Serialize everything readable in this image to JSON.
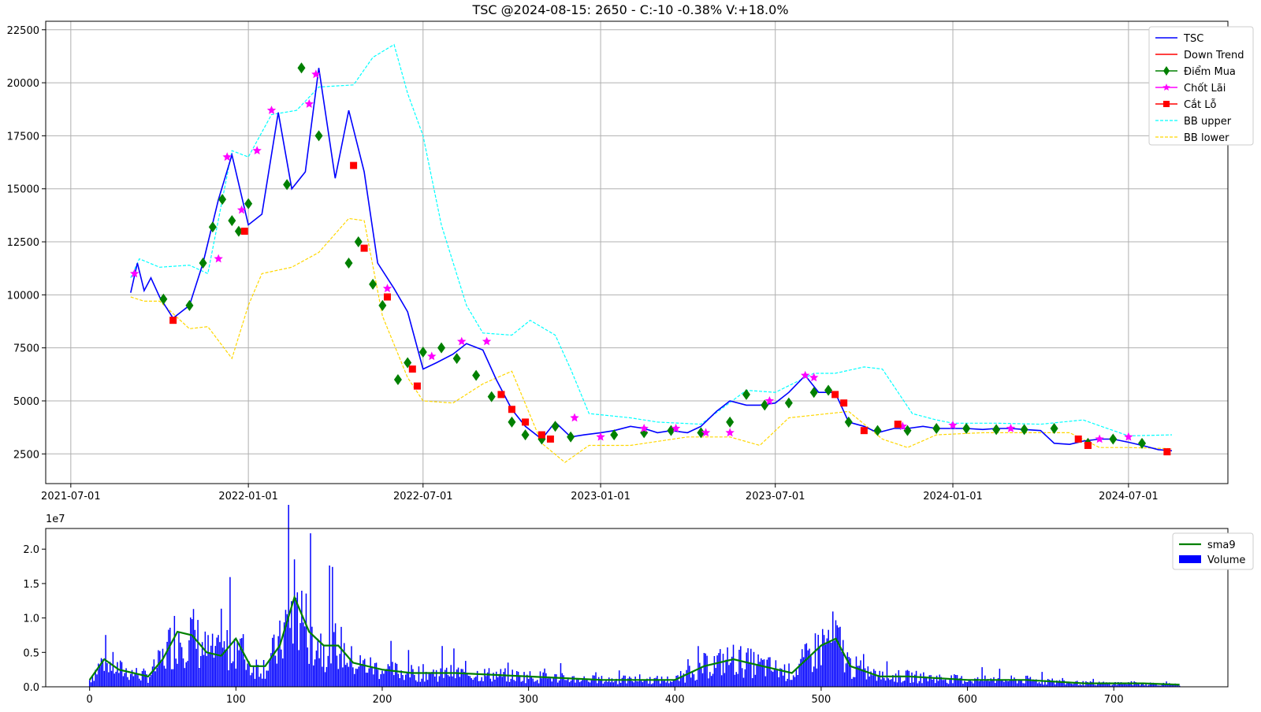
{
  "chart_data": [
    {
      "type": "line",
      "title": "TSC @2024-08-15: 2650 - C:-10 -0.38% V:+18.0%",
      "x_ticks": [
        "2021-07-01",
        "2022-01-01",
        "2022-07-01",
        "2023-01-01",
        "2023-07-01",
        "2024-01-01",
        "2024-07-01"
      ],
      "y_ticks": [
        2500,
        5000,
        7500,
        10000,
        12500,
        15000,
        17500,
        20000,
        22500
      ],
      "ylim": [
        1100,
        22900
      ],
      "grid": true,
      "legend_position": "top-right",
      "legend": [
        "TSC",
        "Down Trend",
        "Điểm Mua",
        "Chốt Lãi",
        "Cắt Lỗ",
        "BB upper",
        "BB lower"
      ],
      "colors": {
        "TSC": "#0000ff",
        "Down Trend": "#ff0000",
        "Điểm Mua": "#008000",
        "Chốt Lãi": "#ff00ff",
        "Cắt Lỗ": "#ff0000",
        "BB upper": "#00ffff",
        "BB lower": "#ffd700"
      },
      "series": [
        {
          "name": "TSC",
          "x": [
            "2021-09-01",
            "2021-09-08",
            "2021-09-15",
            "2021-09-22",
            "2021-10-01",
            "2021-10-15",
            "2021-11-01",
            "2021-11-15",
            "2021-12-01",
            "2021-12-15",
            "2022-01-01",
            "2022-01-15",
            "2022-02-01",
            "2022-02-15",
            "2022-03-01",
            "2022-03-15",
            "2022-04-01",
            "2022-04-15",
            "2022-05-01",
            "2022-05-15",
            "2022-06-01",
            "2022-06-15",
            "2022-07-01",
            "2022-07-15",
            "2022-08-01",
            "2022-08-15",
            "2022-09-01",
            "2022-09-15",
            "2022-10-01",
            "2022-10-15",
            "2022-11-01",
            "2022-11-15",
            "2022-12-01",
            "2022-12-15",
            "2023-01-01",
            "2023-01-15",
            "2023-02-01",
            "2023-02-15",
            "2023-03-01",
            "2023-03-15",
            "2023-04-01",
            "2023-04-15",
            "2023-05-01",
            "2023-05-15",
            "2023-06-01",
            "2023-06-15",
            "2023-07-01",
            "2023-07-15",
            "2023-08-01",
            "2023-08-15",
            "2023-09-01",
            "2023-09-15",
            "2023-10-01",
            "2023-10-15",
            "2023-11-01",
            "2023-11-15",
            "2023-12-01",
            "2023-12-15",
            "2024-01-01",
            "2024-01-15",
            "2024-02-01",
            "2024-02-15",
            "2024-03-01",
            "2024-03-15",
            "2024-04-01",
            "2024-04-15",
            "2024-05-01",
            "2024-05-15",
            "2024-06-01",
            "2024-06-15",
            "2024-07-01",
            "2024-07-15",
            "2024-08-01",
            "2024-08-15"
          ],
          "values": [
            10100,
            11500,
            10200,
            10800,
            9900,
            8900,
            9500,
            11500,
            14500,
            16600,
            13300,
            13800,
            18600,
            15000,
            15800,
            20700,
            15500,
            18700,
            15800,
            11500,
            10300,
            9200,
            6500,
            6800,
            7200,
            7700,
            7400,
            6000,
            4600,
            3800,
            3200,
            4000,
            3300,
            3400,
            3500,
            3600,
            3800,
            3700,
            3500,
            3600,
            3500,
            3800,
            4500,
            5000,
            4800,
            4800,
            4900,
            5400,
            6200,
            5400,
            5400,
            4000,
            3800,
            3500,
            3700,
            3700,
            3800,
            3700,
            3700,
            3700,
            3650,
            3700,
            3700,
            3650,
            3600,
            3000,
            2950,
            3100,
            3200,
            3200,
            3050,
            2900,
            2700,
            2650
          ]
        },
        {
          "name": "BB upper",
          "x": [
            "2021-09-01",
            "2021-09-10",
            "2021-10-01",
            "2021-11-01",
            "2021-11-20",
            "2021-12-15",
            "2022-01-01",
            "2022-01-25",
            "2022-02-20",
            "2022-03-15",
            "2022-04-20",
            "2022-05-10",
            "2022-06-01",
            "2022-06-15",
            "2022-07-01",
            "2022-07-20",
            "2022-08-15",
            "2022-09-01",
            "2022-10-01",
            "2022-10-20",
            "2022-11-15",
            "2022-12-01",
            "2022-12-20",
            "2023-02-01",
            "2023-03-01",
            "2023-04-15",
            "2023-06-01",
            "2023-07-01",
            "2023-08-10",
            "2023-09-01",
            "2023-10-01",
            "2023-10-20",
            "2023-11-20",
            "2023-12-15",
            "2024-01-01",
            "2024-02-15",
            "2024-04-01",
            "2024-05-15",
            "2024-07-01",
            "2024-08-15"
          ],
          "values": [
            10800,
            11700,
            11300,
            11400,
            11000,
            16800,
            16500,
            18500,
            18700,
            19800,
            19900,
            21200,
            21800,
            19500,
            17500,
            13300,
            9500,
            8200,
            8100,
            8800,
            8100,
            6500,
            4400,
            4200,
            4000,
            3900,
            5500,
            5400,
            6300,
            6300,
            6600,
            6500,
            4400,
            4100,
            3950,
            3950,
            3900,
            4100,
            3350,
            3400
          ]
        },
        {
          "name": "BB lower",
          "x": [
            "2021-09-01",
            "2021-09-15",
            "2021-10-01",
            "2021-11-01",
            "2021-11-20",
            "2021-12-15",
            "2022-01-01",
            "2022-01-15",
            "2022-02-15",
            "2022-03-15",
            "2022-04-15",
            "2022-05-01",
            "2022-05-20",
            "2022-06-15",
            "2022-07-01",
            "2022-08-01",
            "2022-09-01",
            "2022-10-01",
            "2022-11-01",
            "2022-11-25",
            "2022-12-20",
            "2023-02-01",
            "2023-04-01",
            "2023-05-15",
            "2023-06-15",
            "2023-07-15",
            "2023-09-15",
            "2023-10-20",
            "2023-11-15",
            "2023-12-15",
            "2024-02-01",
            "2024-05-01",
            "2024-06-01",
            "2024-07-01",
            "2024-08-15"
          ],
          "values": [
            9900,
            9700,
            9700,
            8400,
            8500,
            7000,
            9500,
            11000,
            11300,
            12000,
            13600,
            13500,
            9000,
            6100,
            5000,
            4900,
            5800,
            6400,
            3000,
            2100,
            2900,
            2900,
            3300,
            3300,
            2900,
            4200,
            4500,
            3200,
            2800,
            3400,
            3500,
            3500,
            2800,
            2800,
            2750
          ]
        }
      ],
      "buy_points": {
        "name": "Điểm Mua",
        "x": [
          "2021-10-05",
          "2021-11-01",
          "2021-11-15",
          "2021-11-25",
          "2021-12-05",
          "2021-12-15",
          "2021-12-22",
          "2022-01-01",
          "2022-02-10",
          "2022-02-25",
          "2022-03-15",
          "2022-04-15",
          "2022-04-25",
          "2022-05-10",
          "2022-05-20",
          "2022-06-05",
          "2022-06-15",
          "2022-07-01",
          "2022-07-20",
          "2022-08-05",
          "2022-08-25",
          "2022-09-10",
          "2022-10-01",
          "2022-10-15",
          "2022-11-01",
          "2022-11-15",
          "2022-12-01",
          "2023-01-15",
          "2023-02-15",
          "2023-03-15",
          "2023-04-15",
          "2023-05-15",
          "2023-06-01",
          "2023-06-20",
          "2023-07-15",
          "2023-08-10",
          "2023-08-25",
          "2023-09-15",
          "2023-10-15",
          "2023-11-15",
          "2023-12-15",
          "2024-01-15",
          "2024-02-15",
          "2024-03-15",
          "2024-04-15",
          "2024-05-20",
          "2024-06-15",
          "2024-07-15"
        ],
        "values": [
          9800,
          9500,
          11500,
          13200,
          14500,
          13500,
          13000,
          14300,
          15200,
          20700,
          17500,
          11500,
          12500,
          10500,
          9500,
          6000,
          6800,
          7300,
          7500,
          7000,
          6200,
          5200,
          4000,
          3400,
          3200,
          3800,
          3300,
          3400,
          3500,
          3600,
          3500,
          4000,
          5300,
          4800,
          4900,
          5400,
          5500,
          4000,
          3600,
          3600,
          3700,
          3700,
          3650,
          3650,
          3700,
          3000,
          3200,
          3000
        ]
      },
      "take_profit": {
        "name": "Chốt Lãi",
        "x": [
          "2021-09-05",
          "2021-12-01",
          "2021-12-10",
          "2021-12-25",
          "2022-01-10",
          "2022-01-25",
          "2022-03-05",
          "2022-03-12",
          "2022-05-25",
          "2022-07-10",
          "2022-08-10",
          "2022-09-05",
          "2022-12-05",
          "2023-01-01",
          "2023-02-15",
          "2023-03-20",
          "2023-04-20",
          "2023-05-15",
          "2023-06-25",
          "2023-08-01",
          "2023-08-10",
          "2023-11-10",
          "2024-01-01",
          "2024-03-01",
          "2024-06-01",
          "2024-07-01"
        ],
        "values": [
          11000,
          11700,
          16500,
          14000,
          16800,
          18700,
          19000,
          20400,
          10300,
          7100,
          7800,
          7800,
          4200,
          3300,
          3700,
          3700,
          3500,
          3500,
          5000,
          6200,
          6100,
          3800,
          3850,
          3700,
          3200,
          3300
        ]
      },
      "stop_loss": {
        "name": "Cắt Lỗ",
        "x": [
          "2021-10-15",
          "2021-12-28",
          "2022-04-20",
          "2022-05-01",
          "2022-05-25",
          "2022-06-20",
          "2022-06-25",
          "2022-09-20",
          "2022-10-01",
          "2022-10-15",
          "2022-11-01",
          "2022-11-10",
          "2023-09-01",
          "2023-09-10",
          "2023-10-01",
          "2023-11-05",
          "2024-05-10",
          "2024-05-20",
          "2024-08-10"
        ],
        "values": [
          8800,
          13000,
          16100,
          12200,
          9900,
          6500,
          5700,
          5300,
          4600,
          4000,
          3400,
          3200,
          5300,
          4900,
          3600,
          3900,
          3200,
          2900,
          2600
        ]
      }
    },
    {
      "type": "bar",
      "ylabel_offset": "1e7",
      "x_ticks": [
        0,
        100,
        200,
        300,
        400,
        500,
        600,
        700
      ],
      "y_ticks": [
        "0.0",
        "0.5",
        "1.0",
        "1.5",
        "2.0"
      ],
      "ylim": [
        0,
        2.3
      ],
      "grid": false,
      "legend_position": "top-right",
      "legend": [
        "sma9",
        "Volume"
      ],
      "colors": {
        "sma9": "#008000",
        "Volume": "#0000ff"
      },
      "series": [
        {
          "name": "sma9",
          "x": [
            0,
            10,
            20,
            30,
            40,
            50,
            60,
            70,
            80,
            90,
            100,
            110,
            120,
            130,
            140,
            150,
            160,
            170,
            180,
            190,
            200,
            220,
            250,
            300,
            350,
            400,
            420,
            440,
            460,
            480,
            500,
            510,
            520,
            540,
            560,
            600,
            640,
            680,
            720,
            745
          ],
          "values": [
            0.1,
            0.4,
            0.25,
            0.2,
            0.15,
            0.4,
            0.8,
            0.75,
            0.5,
            0.45,
            0.7,
            0.3,
            0.3,
            0.6,
            1.3,
            0.8,
            0.6,
            0.6,
            0.35,
            0.3,
            0.25,
            0.2,
            0.2,
            0.15,
            0.1,
            0.1,
            0.3,
            0.4,
            0.3,
            0.2,
            0.6,
            0.7,
            0.3,
            0.15,
            0.15,
            0.1,
            0.1,
            0.05,
            0.05,
            0.03
          ]
        }
      ]
    }
  ]
}
